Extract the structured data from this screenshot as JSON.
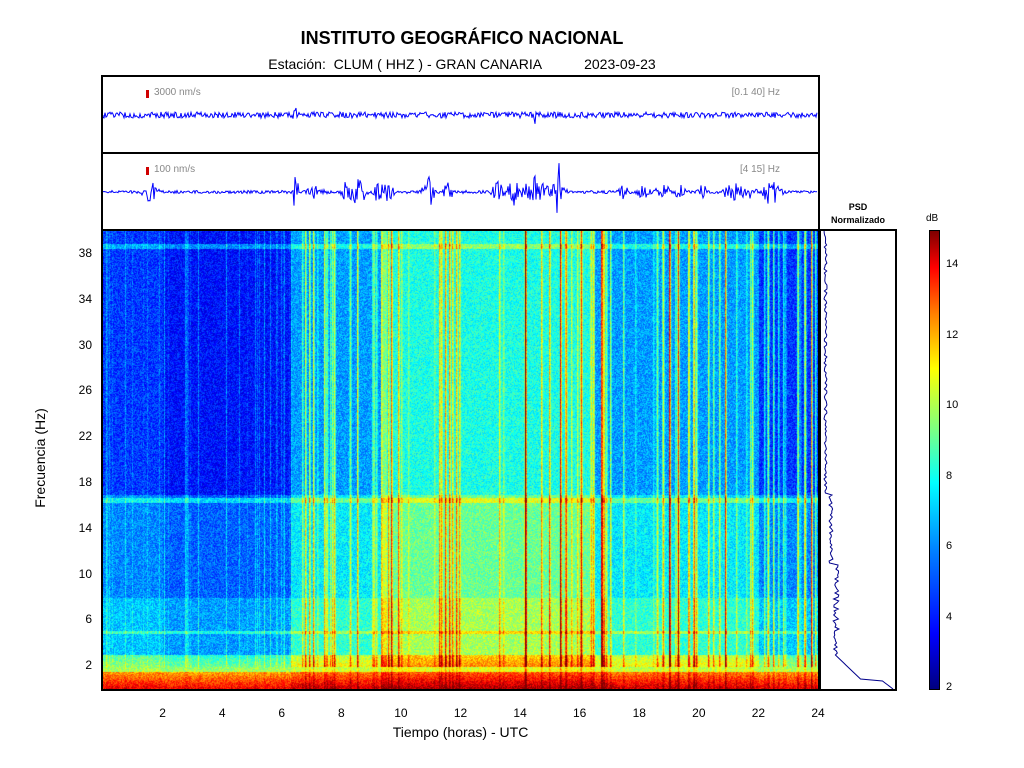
{
  "header": {
    "title": "INSTITUTO GEOGRÁFICO NACIONAL",
    "station_label": "Estación:",
    "station": "CLUM ( HHZ ) - GRAN CANARIA",
    "date": "2023-09-23"
  },
  "traces": [
    {
      "scale_label": "3000 nm/s",
      "band_label": "[0.1 40] Hz",
      "color": "#0000ff"
    },
    {
      "scale_label": "100 nm/s",
      "band_label": "[4 15] Hz",
      "color": "#0000ff"
    }
  ],
  "psd": {
    "title_line1": "PSD",
    "title_line2": "Normalizado",
    "color": "#00008b"
  },
  "colorbar": {
    "unit": "dB",
    "min": 2,
    "max": 15,
    "ticks": [
      "14",
      "12",
      "10",
      "8",
      "6",
      "4",
      "2"
    ],
    "tick_values": [
      14,
      12,
      10,
      8,
      6,
      4,
      2
    ]
  },
  "chart_data": {
    "type": "heatmap",
    "title": "INSTITUTO GEOGRÁFICO NACIONAL",
    "xlabel": "Tiempo (horas) - UTC",
    "ylabel": "Frecuencia  (Hz)",
    "xlim": [
      0,
      24
    ],
    "ylim": [
      0,
      40
    ],
    "x_ticks": [
      "2",
      "4",
      "6",
      "8",
      "10",
      "12",
      "14",
      "16",
      "18",
      "20",
      "22",
      "24"
    ],
    "x_tick_values": [
      2,
      4,
      6,
      8,
      10,
      12,
      14,
      16,
      18,
      20,
      22,
      24
    ],
    "y_ticks": [
      "2",
      "6",
      "10",
      "14",
      "18",
      "22",
      "26",
      "30",
      "34",
      "38"
    ],
    "y_tick_values": [
      2,
      6,
      10,
      14,
      18,
      22,
      26,
      30,
      34,
      38
    ],
    "colorscale": "jet",
    "value_range": [
      2,
      15
    ],
    "value_unit": "dB"
  }
}
